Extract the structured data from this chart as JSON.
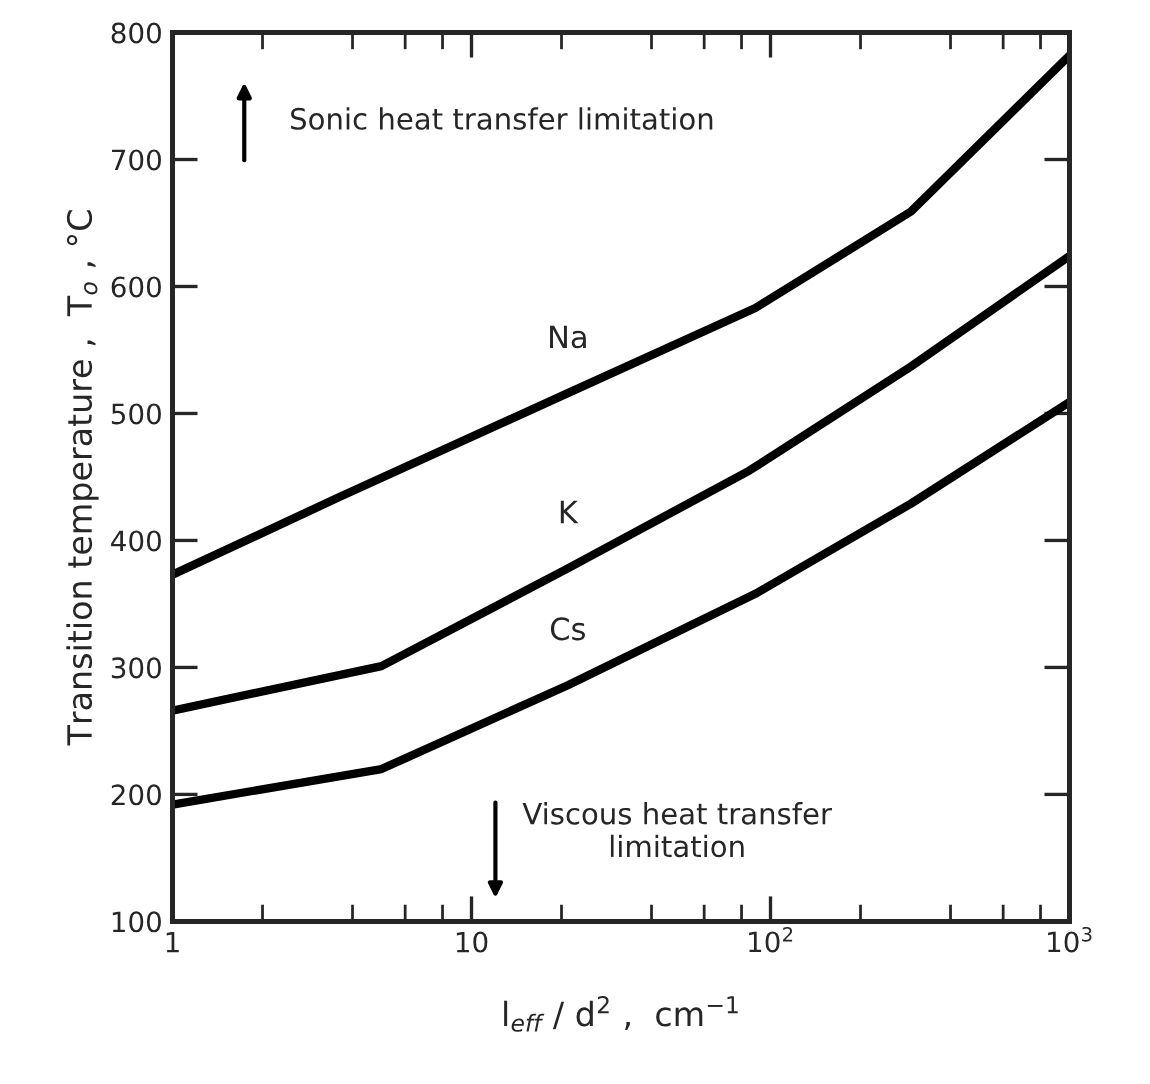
{
  "chart_data": {
    "type": "line",
    "xlabel": "l$_{eff}$ / d$^{2}$ ,  cm$^{−1}$",
    "ylabel": "Transition temperature ,  T$_{o}$ , °C",
    "log": "x",
    "xlim": [
      1,
      1000
    ],
    "ylim": [
      100,
      800
    ],
    "xticks": [
      1,
      10,
      {
        "value": 100,
        "label": "10$^{2}$"
      },
      {
        "value": 1000,
        "label": "10$^{3}$"
      }
    ],
    "yticks": [
      100,
      200,
      300,
      400,
      500,
      600,
      700,
      800
    ],
    "grid": false,
    "legend": false,
    "marker": "none",
    "line_style": "solid",
    "annotations": [
      "Sonic heat transfer limitation",
      "Viscous heat transfer\nlimitation"
    ],
    "series": [
      {
        "name": "Na",
        "color": "#000000",
        "x": [
          1,
          3.6,
          21,
          89,
          295,
          1000
        ],
        "values": [
          373,
          434,
          516,
          583,
          659,
          782
        ]
      },
      {
        "name": "K",
        "color": "#000000",
        "x": [
          1,
          5,
          21,
          85,
          295,
          1000
        ],
        "values": [
          266,
          301,
          378,
          455,
          537,
          624
        ]
      },
      {
        "name": "Cs",
        "color": "#000000",
        "x": [
          1,
          5,
          21,
          89,
          295,
          1000
        ],
        "values": [
          192,
          220,
          286,
          358,
          429,
          509
        ]
      }
    ]
  }
}
